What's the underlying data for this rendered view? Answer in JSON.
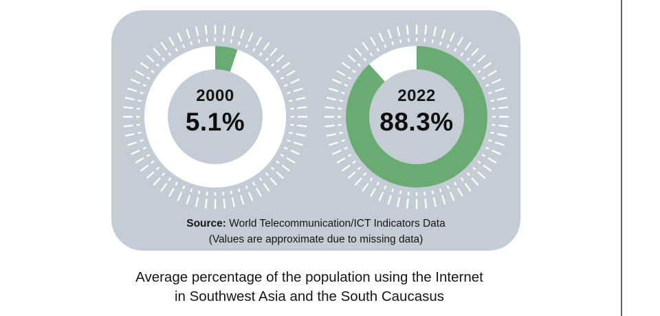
{
  "colors": {
    "card_background": "#c4cdd5",
    "green": "#6aaa73",
    "ring_base_white": "#ffffff",
    "ticks": "#ffffff",
    "divider": "#636363",
    "text": "#151515"
  },
  "card": {
    "source": {
      "label": "Source:",
      "text": "World Telecommunication/ICT Indicators Data",
      "note": "(Values are approximate due to missing data)"
    }
  },
  "caption": {
    "line1": "Average percentage of the population using the Internet",
    "line2": "in Southwest Asia and the South Caucasus"
  },
  "chart_data": [
    {
      "type": "pie",
      "variant": "donut",
      "title": "2000",
      "year_label": "2000",
      "value_label": "5.1%",
      "value_percent": 5.1,
      "start_angle_deg": 0,
      "direction": "clockwise",
      "slices": [
        {
          "name": "population-using-internet",
          "value": 5.1,
          "color": "#6aaa73"
        },
        {
          "name": "remainder",
          "value": 94.9,
          "color": "#ffffff"
        }
      ]
    },
    {
      "type": "pie",
      "variant": "donut",
      "title": "2022",
      "year_label": "2022",
      "value_label": "88.3%",
      "value_percent": 88.3,
      "start_angle_deg": 0,
      "direction": "clockwise",
      "slices": [
        {
          "name": "population-using-internet",
          "value": 88.3,
          "color": "#6aaa73"
        },
        {
          "name": "remainder",
          "value": 11.7,
          "color": "#ffffff"
        }
      ]
    }
  ]
}
